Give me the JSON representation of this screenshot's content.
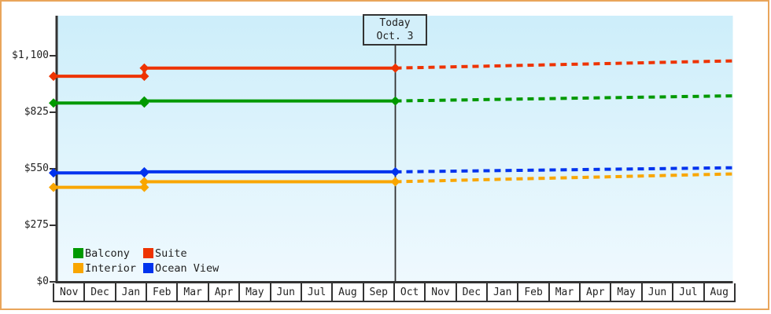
{
  "colors": {
    "frame_border": "#e9a55b",
    "axis": "#333333",
    "plot_bg_top": "#cdeefa",
    "plot_bg_bottom": "#eff9fe",
    "today_box_bg": "#d3effa",
    "text": "#222222"
  },
  "chart_data": {
    "type": "line",
    "title": "",
    "description": "Cabin price history (solid) and projection (dashed) by month",
    "x_axis": {
      "unit": "month",
      "labels": [
        "Nov",
        "Dec",
        "Jan",
        "Feb",
        "Mar",
        "Apr",
        "May",
        "Jun",
        "Jul",
        "Aug",
        "Sep",
        "Oct",
        "Nov",
        "Dec",
        "Jan",
        "Feb",
        "Mar",
        "Apr",
        "May",
        "Jun",
        "Jul",
        "Aug"
      ]
    },
    "y_axis": {
      "min": 0,
      "max_label": 1100,
      "ticks": [
        {
          "value": 0,
          "label": "$0"
        },
        {
          "value": 275,
          "label": "$275"
        },
        {
          "value": 550,
          "label": "$550"
        },
        {
          "value": 825,
          "label": "$825"
        },
        {
          "value": 1100,
          "label": "$1,100"
        }
      ]
    },
    "today": {
      "title": "Today",
      "date": "Oct. 3",
      "month_x": 11.07
    },
    "series": [
      {
        "name": "Balcony",
        "color": "#009900",
        "history": [
          {
            "x": 0,
            "price": 870
          },
          {
            "x": 2.94,
            "price": 870
          },
          {
            "x": 2.94,
            "price": 880
          },
          {
            "x": 11.07,
            "price": 880
          }
        ],
        "projection": [
          {
            "x": 11.07,
            "price": 880
          },
          {
            "x": 22,
            "price": 905
          }
        ]
      },
      {
        "name": "Suite",
        "color": "#ee3300",
        "history": [
          {
            "x": 0,
            "price": 1000
          },
          {
            "x": 2.94,
            "price": 1000
          },
          {
            "x": 2.94,
            "price": 1040
          },
          {
            "x": 11.07,
            "price": 1040
          }
        ],
        "projection": [
          {
            "x": 11.07,
            "price": 1040
          },
          {
            "x": 22,
            "price": 1075
          }
        ]
      },
      {
        "name": "Interior",
        "color": "#f9a600",
        "history": [
          {
            "x": 0,
            "price": 460
          },
          {
            "x": 2.94,
            "price": 460
          },
          {
            "x": 2.94,
            "price": 487
          },
          {
            "x": 11.07,
            "price": 487
          }
        ],
        "projection": [
          {
            "x": 11.07,
            "price": 487
          },
          {
            "x": 22,
            "price": 525
          }
        ]
      },
      {
        "name": "Ocean View",
        "color": "#0033ee",
        "history": [
          {
            "x": 0,
            "price": 530
          },
          {
            "x": 2.94,
            "price": 530
          },
          {
            "x": 2.94,
            "price": 535
          },
          {
            "x": 11.07,
            "price": 535
          }
        ],
        "projection": [
          {
            "x": 11.07,
            "price": 535
          },
          {
            "x": 22,
            "price": 555
          }
        ]
      }
    ],
    "legend": [
      {
        "label": "Balcony",
        "color": "#009900"
      },
      {
        "label": "Suite",
        "color": "#ee3300"
      },
      {
        "label": "Interior",
        "color": "#f9a600"
      },
      {
        "label": "Ocean View",
        "color": "#0033ee"
      }
    ]
  }
}
